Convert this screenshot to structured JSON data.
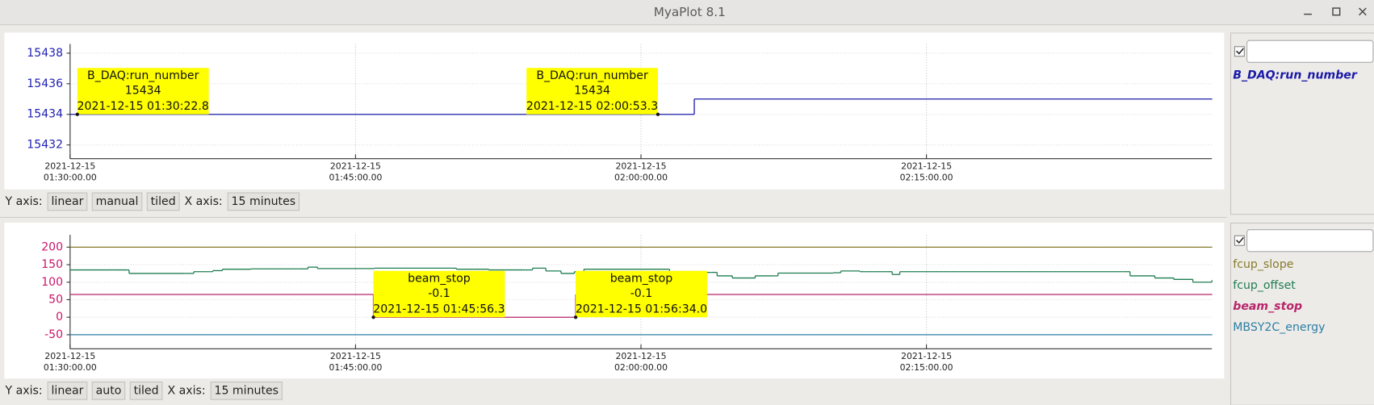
{
  "window_title": "MyaPlot 8.1",
  "chart_data": [
    {
      "type": "line",
      "step": true,
      "grid": true,
      "xlim": [
        "2021-12-15 01:30:00",
        "2021-12-15 02:30:00"
      ],
      "xticks": [
        {
          "value": "2021-12-15 01:30:00",
          "label": [
            "2021-12-15",
            "01:30:00.00"
          ]
        },
        {
          "value": "2021-12-15 01:45:00",
          "label": [
            "2021-12-15",
            "01:45:00.00"
          ]
        },
        {
          "value": "2021-12-15 02:00:00",
          "label": [
            "2021-12-15",
            "02:00:00.00"
          ]
        },
        {
          "value": "2021-12-15 02:15:00",
          "label": [
            "2021-12-15",
            "02:15:00.00"
          ]
        }
      ],
      "ylim": [
        15431.1,
        15438.6
      ],
      "yticks": [
        15432,
        15434,
        15436,
        15438
      ],
      "ytick_color": "#2323b5",
      "series": [
        {
          "name": "B_DAQ:run_number",
          "color": "#1a1aa8",
          "highlight": true,
          "x": [
            "2021-12-15 01:30:00",
            "2021-12-15 02:02:48",
            "2021-12-15 02:30:00"
          ],
          "values": [
            15434,
            15435,
            15435
          ]
        }
      ],
      "annotations": [
        {
          "name": "B_DAQ:run_number",
          "value": 15434,
          "time": "2021-12-15 01:30:22.8",
          "anchor": "left"
        },
        {
          "name": "B_DAQ:run_number",
          "value": 15434,
          "time": "2021-12-15 02:00:53.3",
          "anchor": "right"
        }
      ],
      "controls": {
        "y_label": "Y axis:",
        "scale": "linear",
        "range": "manual",
        "layout": "tiled",
        "x_label": "X axis:",
        "x_span": "15 minutes"
      }
    },
    {
      "type": "line",
      "step": true,
      "grid": true,
      "xlim": [
        "2021-12-15 01:30:00",
        "2021-12-15 02:30:00"
      ],
      "xticks": [
        {
          "value": "2021-12-15 01:30:00",
          "label": [
            "2021-12-15",
            "01:30:00.00"
          ]
        },
        {
          "value": "2021-12-15 01:45:00",
          "label": [
            "2021-12-15",
            "01:45:00.00"
          ]
        },
        {
          "value": "2021-12-15 02:00:00",
          "label": [
            "2021-12-15",
            "02:00:00.00"
          ]
        },
        {
          "value": "2021-12-15 02:15:00",
          "label": [
            "2021-12-15",
            "02:15:00.00"
          ]
        }
      ],
      "ylim": [
        -90,
        235
      ],
      "yticks": [
        -50,
        0,
        50,
        100,
        150,
        200
      ],
      "ytick_color": "#c8176a",
      "series": [
        {
          "name": "fcup_slope",
          "color": "#857a2a",
          "highlight": false,
          "x": [
            "2021-12-15 01:30:00",
            "2021-12-15 02:30:00"
          ],
          "values": [
            200,
            200
          ]
        },
        {
          "name": "fcup_offset",
          "color": "#1f7d50",
          "highlight": false,
          "x": [
            "2021-12-15 01:30:00",
            "2021-12-15 01:33:00",
            "2021-12-15 01:33:06",
            "2021-12-15 01:36:00",
            "2021-12-15 01:36:30",
            "2021-12-15 01:37:30",
            "2021-12-15 01:38:00",
            "2021-12-15 01:39:30",
            "2021-12-15 01:42:00",
            "2021-12-15 01:42:30",
            "2021-12-15 01:43:00",
            "2021-12-15 01:46:00",
            "2021-12-15 01:50:00",
            "2021-12-15 01:50:18",
            "2021-12-15 01:52:00",
            "2021-12-15 01:53:48",
            "2021-12-15 01:54:18",
            "2021-12-15 01:55:00",
            "2021-12-15 01:55:48",
            "2021-12-15 01:56:30",
            "2021-12-15 01:57:00",
            "2021-12-15 02:01:24",
            "2021-12-15 02:01:30",
            "2021-12-15 02:03:42",
            "2021-12-15 02:04:00",
            "2021-12-15 02:04:48",
            "2021-12-15 02:06:00",
            "2021-12-15 02:06:54",
            "2021-12-15 02:07:12",
            "2021-12-15 02:10:06",
            "2021-12-15 02:10:30",
            "2021-12-15 02:11:30",
            "2021-12-15 02:12:54",
            "2021-12-15 02:13:12",
            "2021-12-15 02:13:36",
            "2021-12-15 02:25:24",
            "2021-12-15 02:25:42",
            "2021-12-15 02:27:00",
            "2021-12-15 02:28:00",
            "2021-12-15 02:29:00",
            "2021-12-15 02:30:00"
          ],
          "values": [
            135,
            135,
            125,
            125,
            130,
            133,
            137,
            138,
            138,
            143,
            139,
            140,
            140,
            137,
            135,
            135,
            140,
            132,
            125,
            130,
            137,
            137,
            128,
            128,
            118,
            112,
            118,
            118,
            126,
            127,
            132,
            130,
            130,
            122,
            130,
            130,
            118,
            112,
            108,
            100,
            105
          ]
        },
        {
          "name": "beam_stop",
          "color": "#b8246a",
          "highlight": true,
          "x": [
            "2021-12-15 01:30:00",
            "2021-12-15 01:45:56.3",
            "2021-12-15 01:56:34.0",
            "2021-12-15 02:30:00"
          ],
          "values": [
            65,
            -0.1,
            65,
            65
          ]
        },
        {
          "name": "MBSY2C_energy",
          "color": "#2b7ea3",
          "highlight": false,
          "x": [
            "2021-12-15 01:30:00",
            "2021-12-15 02:30:00"
          ],
          "values": [
            -50,
            -50
          ]
        }
      ],
      "annotations": [
        {
          "name": "beam_stop",
          "value": -0.1,
          "time": "2021-12-15 01:45:56.3",
          "anchor": "left"
        },
        {
          "name": "beam_stop",
          "value": -0.1,
          "time": "2021-12-15 01:56:34.0",
          "anchor": "left"
        }
      ],
      "controls": {
        "y_label": "Y axis:",
        "scale": "linear",
        "range": "auto",
        "layout": "tiled",
        "x_label": "X axis:",
        "x_span": "15 minutes"
      }
    }
  ]
}
